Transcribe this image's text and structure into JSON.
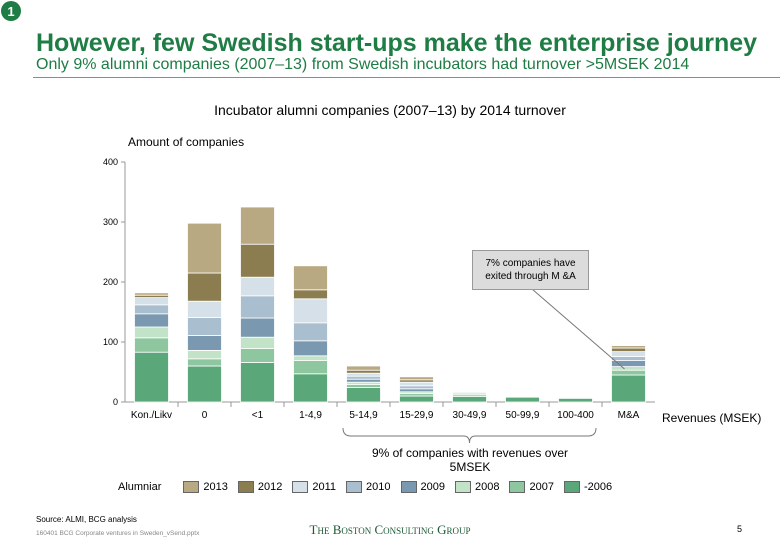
{
  "slide_number": "1",
  "title": "However, few Swedish start-ups make the enterprise journey",
  "subtitle": "Only 9% alumni companies (2007–13) from Swedish incubators had turnover >5MSEK 2014",
  "chart_data": {
    "type": "bar",
    "title": "Incubator alumni companies (2007–13) by 2014 turnover",
    "ylabel": "Amount of companies",
    "xlabel": "Revenues (MSEK)",
    "ylim": [
      0,
      400
    ],
    "yticks": [
      0,
      100,
      200,
      300,
      400
    ],
    "categories": [
      "Kon./Likv",
      "0",
      "<1",
      "1-4,9",
      "5-14,9",
      "15-29,9",
      "30-49,9",
      "50-99,9",
      "100-400",
      "M&A"
    ],
    "stacked": true,
    "series": [
      {
        "name": "-2006",
        "color": "#5aa77a",
        "values": [
          83,
          60,
          66,
          47,
          24,
          10,
          9,
          8,
          6,
          45
        ]
      },
      {
        "name": "2007",
        "color": "#8ec79f",
        "values": [
          24,
          12,
          23,
          22,
          5,
          4,
          3,
          0,
          0,
          8
        ]
      },
      {
        "name": "2008",
        "color": "#c2e3c8",
        "values": [
          18,
          14,
          19,
          8,
          4,
          3,
          2,
          0,
          0,
          6
        ]
      },
      {
        "name": "2009",
        "color": "#7a99b0",
        "values": [
          22,
          25,
          32,
          25,
          5,
          5,
          2,
          0,
          0,
          10
        ]
      },
      {
        "name": "2010",
        "color": "#a9bfcf",
        "values": [
          15,
          30,
          37,
          30,
          5,
          5,
          1,
          0,
          0,
          7
        ]
      },
      {
        "name": "2011",
        "color": "#d5e0e9",
        "values": [
          12,
          27,
          31,
          40,
          5,
          6,
          1,
          0,
          0,
          8
        ]
      },
      {
        "name": "2012",
        "color": "#8b7d50",
        "values": [
          4,
          47,
          55,
          15,
          5,
          4,
          1,
          0,
          0,
          6
        ]
      },
      {
        "name": "2013",
        "color": "#b8a982",
        "values": [
          4,
          83,
          62,
          40,
          7,
          5,
          1,
          0,
          0,
          4
        ]
      }
    ],
    "legend_title": "Alumniar",
    "legend_order": [
      "2013",
      "2012",
      "2011",
      "2010",
      "2009",
      "2008",
      "2007",
      "-2006"
    ],
    "annotations": {
      "callout": "7% companies have exited through M &A",
      "brace": "9% of companies with revenues over 5MSEK"
    }
  },
  "footer": {
    "source": "Source: ALMI, BCG analysis",
    "file": "160401 BCG Corporate ventures in Sweden_vSend.pptx",
    "logo": "The Boston Consulting Group",
    "page": "5"
  }
}
